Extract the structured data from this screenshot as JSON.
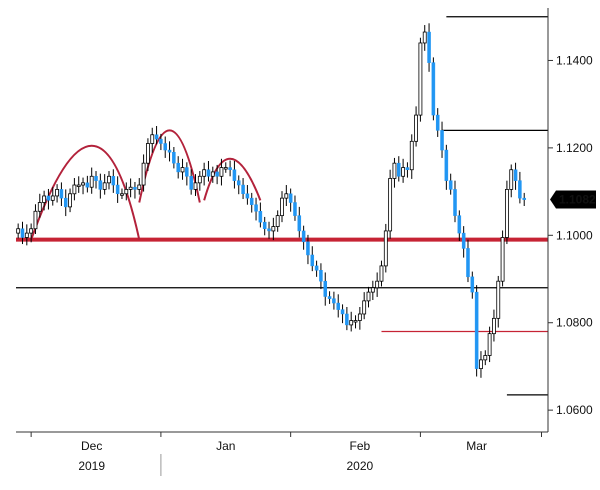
{
  "chart_data": {
    "type": "candlestick",
    "instrument_colors": {
      "up": "#ffffff",
      "down": "#2196f3",
      "wick": "#000000"
    },
    "y_axis": {
      "position": "right",
      "ylim": [
        1.055,
        1.152
      ],
      "ticks": [
        {
          "value": 1.06,
          "label": "1.0600"
        },
        {
          "value": 1.08,
          "label": "1.0800"
        },
        {
          "value": 1.1,
          "label": "1.1000"
        },
        {
          "value": 1.12,
          "label": "1.1200"
        },
        {
          "value": 1.14,
          "label": "1.1400"
        }
      ]
    },
    "x_axis": {
      "bar_count": 123,
      "month_labels": [
        {
          "index": 17,
          "label": "Dec"
        },
        {
          "index": 48,
          "label": "Jan"
        },
        {
          "index": 79,
          "label": "Feb"
        },
        {
          "index": 106,
          "label": "Mar"
        }
      ],
      "year_labels": [
        {
          "index": 17,
          "label": "2019"
        },
        {
          "index": 79,
          "label": "2020"
        }
      ],
      "year_divider_index": 33,
      "month_ticks": [
        3,
        33,
        63,
        93,
        121
      ]
    },
    "last_price": {
      "value": 1.1082,
      "label": "1.1082"
    },
    "support_resistance_lines": [
      {
        "name": "support-1.0990",
        "value": 1.099,
        "from_index": 0,
        "to_index": 123,
        "color": "#c62334",
        "weight": "thick"
      },
      {
        "name": "level-1.1240",
        "value": 1.124,
        "from_index": 98,
        "to_index": 123,
        "color": "#000000",
        "weight": "thin"
      },
      {
        "name": "level-1.1500",
        "value": 1.15,
        "from_index": 99,
        "to_index": 123,
        "color": "#000000",
        "weight": "thin"
      },
      {
        "name": "level-1.0880",
        "value": 1.088,
        "from_index": 0,
        "to_index": 123,
        "color": "#000000",
        "weight": "thin"
      },
      {
        "name": "level-1.0780",
        "value": 1.078,
        "from_index": 84,
        "to_index": 123,
        "color": "#c62334",
        "weight": "thin"
      },
      {
        "name": "level-1.0635",
        "value": 1.0635,
        "from_index": 113,
        "to_index": 123,
        "color": "#000000",
        "weight": "thin"
      }
    ],
    "pattern_arcs": [
      {
        "name": "left-shoulder",
        "from_index": 3,
        "peak_index": 17,
        "to_index": 28,
        "base": 1.099,
        "peak": 1.1205
      },
      {
        "name": "head",
        "from_index": 28,
        "peak_index": 35,
        "to_index": 42,
        "base": 1.1075,
        "peak": 1.124
      },
      {
        "name": "right-shoulder",
        "from_index": 43,
        "peak_index": 49,
        "to_index": 56,
        "base": 1.108,
        "peak": 1.1175
      }
    ],
    "closes": [
      1.1015,
      1.0995,
      1.1005,
      1.1015,
      1.1055,
      1.1075,
      1.109,
      1.108,
      1.109,
      1.1105,
      1.1085,
      1.1065,
      1.1095,
      1.1115,
      1.1115,
      1.112,
      1.111,
      1.1135,
      1.1125,
      1.1105,
      1.112,
      1.1135,
      1.1115,
      1.1095,
      1.1095,
      1.1105,
      1.111,
      1.1105,
      1.1115,
      1.1165,
      1.121,
      1.123,
      1.122,
      1.121,
      1.1195,
      1.119,
      1.1165,
      1.1145,
      1.1155,
      1.1135,
      1.1105,
      1.112,
      1.1135,
      1.115,
      1.1135,
      1.1145,
      1.1135,
      1.1155,
      1.1155,
      1.115,
      1.1125,
      1.1115,
      1.1095,
      1.1085,
      1.107,
      1.1055,
      1.103,
      1.1015,
      1.101,
      1.102,
      1.1045,
      1.1085,
      1.1095,
      1.1075,
      1.1045,
      1.101,
      1.0985,
      1.0955,
      1.093,
      1.092,
      1.0895,
      1.086,
      1.0855,
      1.0845,
      1.083,
      1.082,
      1.0795,
      1.0805,
      1.0805,
      1.082,
      1.085,
      1.087,
      1.088,
      1.0895,
      1.093,
      1.101,
      1.113,
      1.1165,
      1.1135,
      1.1155,
      1.115,
      1.1215,
      1.1275,
      1.144,
      1.1465,
      1.1395,
      1.1275,
      1.124,
      1.1195,
      1.1125,
      1.1105,
      1.1045,
      1.1005,
      1.097,
      1.0905,
      1.087,
      1.0695,
      1.0715,
      1.0725,
      1.0775,
      1.081,
      1.0895,
      1.0995,
      1.1105,
      1.115,
      1.1125,
      1.1085,
      1.1082,
      1.1082,
      1.1082,
      1.1082,
      1.1082,
      1.1082
    ]
  }
}
